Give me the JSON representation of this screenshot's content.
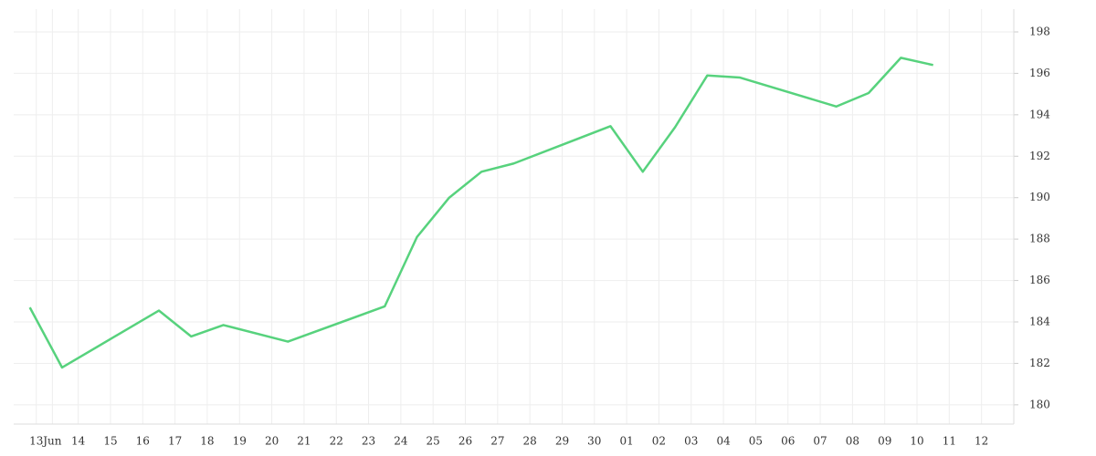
{
  "chart_data": {
    "type": "line",
    "x": [
      -0.5,
      0.5,
      3.5,
      4.5,
      5.5,
      7.5,
      10.5,
      11.5,
      12.5,
      13.5,
      14.5,
      17.5,
      18.5,
      19.5,
      20.5,
      21.5,
      24.5,
      25.5,
      26.5,
      27.5
    ],
    "series": [
      {
        "color": "#57d27d",
        "values": [
          184.7,
          181.8,
          184.55,
          183.3,
          183.85,
          183.05,
          184.75,
          188.1,
          190.0,
          191.25,
          191.65,
          193.45,
          191.25,
          193.4,
          195.9,
          195.8,
          194.4,
          195.05,
          196.75,
          196.4
        ]
      }
    ],
    "xlim": [
      -1,
      30
    ],
    "xticks": [
      {
        "value": -0.3,
        "label": "13"
      },
      {
        "value": 0.2,
        "label": "Jun"
      },
      {
        "value": 1,
        "label": "14"
      },
      {
        "value": 2,
        "label": "15"
      },
      {
        "value": 3,
        "label": "16"
      },
      {
        "value": 4,
        "label": "17"
      },
      {
        "value": 5,
        "label": "18"
      },
      {
        "value": 6,
        "label": "19"
      },
      {
        "value": 7,
        "label": "20"
      },
      {
        "value": 8,
        "label": "21"
      },
      {
        "value": 9,
        "label": "22"
      },
      {
        "value": 10,
        "label": "23"
      },
      {
        "value": 11,
        "label": "24"
      },
      {
        "value": 12,
        "label": "25"
      },
      {
        "value": 13,
        "label": "26"
      },
      {
        "value": 14,
        "label": "27"
      },
      {
        "value": 15,
        "label": "28"
      },
      {
        "value": 16,
        "label": "29"
      },
      {
        "value": 17,
        "label": "30"
      },
      {
        "value": 18,
        "label": "01"
      },
      {
        "value": 19,
        "label": "02"
      },
      {
        "value": 20,
        "label": "03"
      },
      {
        "value": 21,
        "label": "04"
      },
      {
        "value": 22,
        "label": "05"
      },
      {
        "value": 23,
        "label": "06"
      },
      {
        "value": 24,
        "label": "07"
      },
      {
        "value": 25,
        "label": "08"
      },
      {
        "value": 26,
        "label": "09"
      },
      {
        "value": 27,
        "label": "10"
      },
      {
        "value": 28,
        "label": "11"
      },
      {
        "value": 29,
        "label": "12"
      }
    ],
    "ylim": [
      179.07,
      199.1
    ],
    "yticks": [
      180,
      182,
      184,
      186,
      188,
      190,
      192,
      194,
      196,
      198
    ],
    "grid": true
  }
}
